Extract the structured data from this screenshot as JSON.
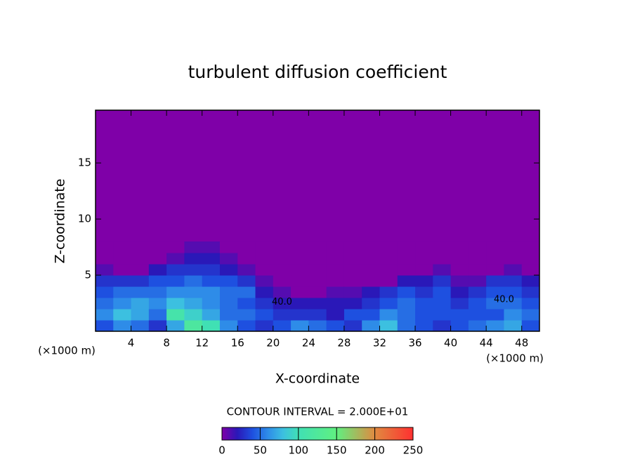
{
  "chart_data": {
    "type": "heatmap",
    "title": "turbulent diffusion coefficient",
    "xlabel": "X-coordinate",
    "ylabel": "Z-coordinate",
    "x_unit_label": "(×1000 m)",
    "footer": "CONTOUR INTERVAL = 2.000E+01",
    "annotations": [
      {
        "text": "40.0",
        "x": 46,
        "y": 2.8
      },
      {
        "text": "40.0",
        "x": 21,
        "y": 2.6
      }
    ],
    "xlim": [
      0,
      50
    ],
    "ylim": [
      0,
      19.7
    ],
    "xticks": [
      4,
      8,
      12,
      16,
      20,
      24,
      28,
      32,
      36,
      40,
      44,
      48
    ],
    "yticks": [
      5,
      10,
      15
    ],
    "background": "#7f00a8",
    "x": [
      1,
      3,
      5,
      7,
      9,
      11,
      13,
      15,
      17,
      19,
      21,
      23,
      25,
      27,
      29,
      31,
      33,
      35,
      37,
      39,
      41,
      43,
      45,
      47,
      49
    ],
    "y": [
      0.5,
      1.5,
      2.5,
      3.5,
      4.5,
      5.5,
      6.5,
      7.5
    ],
    "z": [
      [
        40,
        60,
        50,
        30,
        70,
        120,
        100,
        60,
        40,
        30,
        40,
        60,
        50,
        40,
        30,
        60,
        80,
        50,
        40,
        30,
        40,
        50,
        60,
        70,
        40
      ],
      [
        60,
        80,
        70,
        50,
        110,
        90,
        70,
        50,
        50,
        40,
        30,
        30,
        30,
        20,
        40,
        40,
        60,
        50,
        40,
        40,
        40,
        40,
        40,
        60,
        50
      ],
      [
        50,
        60,
        70,
        60,
        80,
        70,
        60,
        50,
        40,
        30,
        20,
        20,
        20,
        20,
        20,
        30,
        40,
        50,
        40,
        40,
        30,
        40,
        50,
        50,
        40
      ],
      [
        40,
        50,
        50,
        50,
        60,
        60,
        60,
        50,
        50,
        20,
        10,
        0,
        0,
        10,
        10,
        20,
        30,
        40,
        30,
        40,
        20,
        30,
        40,
        40,
        30
      ],
      [
        30,
        30,
        30,
        40,
        40,
        50,
        40,
        40,
        30,
        10,
        0,
        0,
        0,
        0,
        0,
        0,
        0,
        20,
        20,
        30,
        10,
        10,
        30,
        30,
        20
      ],
      [
        10,
        0,
        0,
        20,
        30,
        30,
        30,
        20,
        10,
        0,
        0,
        0,
        0,
        0,
        0,
        0,
        0,
        0,
        0,
        10,
        0,
        0,
        0,
        10,
        0
      ],
      [
        0,
        0,
        0,
        0,
        10,
        20,
        20,
        10,
        0,
        0,
        0,
        0,
        0,
        0,
        0,
        0,
        0,
        0,
        0,
        0,
        0,
        0,
        0,
        0,
        0
      ],
      [
        0,
        0,
        0,
        0,
        0,
        10,
        10,
        0,
        0,
        0,
        0,
        0,
        0,
        0,
        0,
        0,
        0,
        0,
        0,
        0,
        0,
        0,
        0,
        0,
        0
      ]
    ],
    "colorbar_lim": [
      0,
      250
    ],
    "colorbar_ticks": [
      0,
      50,
      100,
      150,
      200,
      250
    ],
    "colorscale": [
      [
        0,
        "#7f00a8"
      ],
      [
        20,
        "#2a18b8"
      ],
      [
        40,
        "#1e50e0"
      ],
      [
        60,
        "#2e8ce8"
      ],
      [
        80,
        "#3cc0e0"
      ],
      [
        100,
        "#40e0b4"
      ],
      [
        150,
        "#60f080"
      ],
      [
        200,
        "#e08a40"
      ],
      [
        250,
        "#ff3030"
      ]
    ]
  }
}
